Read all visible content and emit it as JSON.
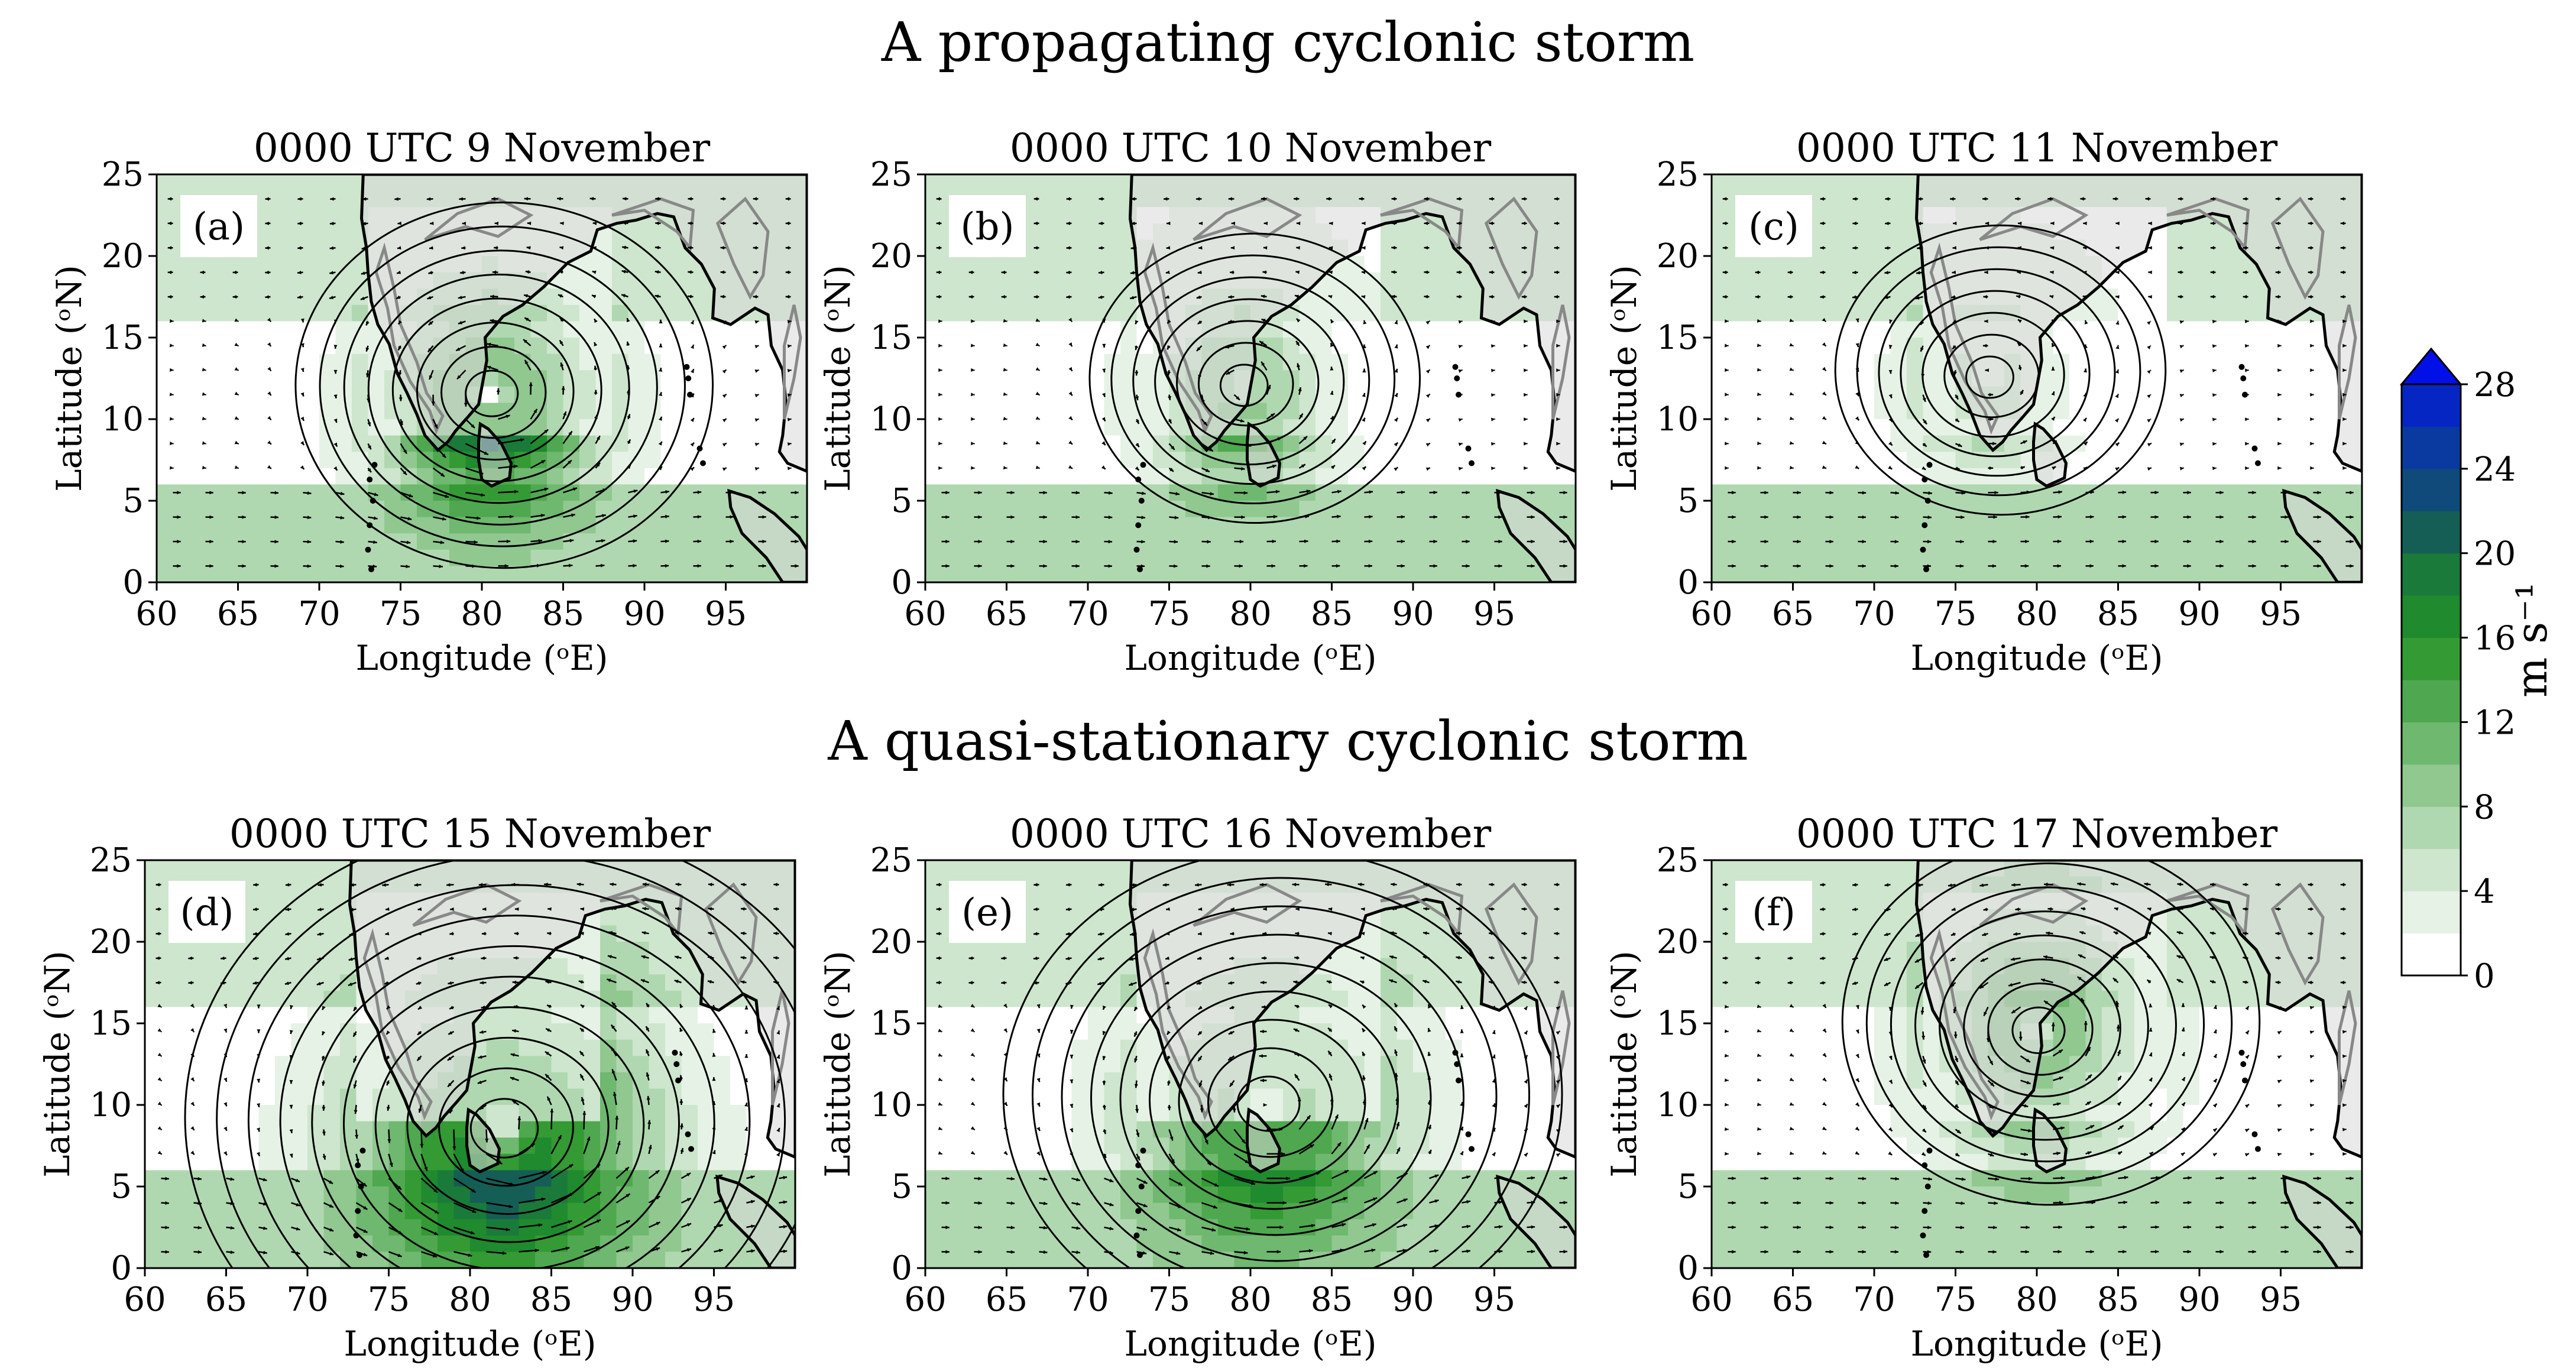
{
  "figure": {
    "row_titles": [
      "A propagating cyclonic storm",
      "A quasi-stationary cyclonic storm"
    ],
    "x_axis_label": "Longitude (ᵒE)",
    "y_axis_label": "Latitude (ᵒN)",
    "x_ticks": [
      "60",
      "65",
      "70",
      "75",
      "80",
      "85",
      "90",
      "95"
    ],
    "y_ticks": [
      "0",
      "5",
      "10",
      "15",
      "20",
      "25"
    ],
    "panels": [
      {
        "title": "0000 UTC 9  November",
        "label": "(a)",
        "center_lon": 80.5,
        "center_lat": 11.5,
        "intensity": 1.0,
        "spread": 6
      },
      {
        "title": "0000 UTC 10  November",
        "label": "(b)",
        "center_lon": 79.5,
        "center_lat": 12.0,
        "intensity": 0.85,
        "spread": 5
      },
      {
        "title": "0000 UTC 11  November",
        "label": "(c)",
        "center_lon": 77.0,
        "center_lat": 12.5,
        "intensity": 0.45,
        "spread": 5
      },
      {
        "title": "0000 UTC 15  November",
        "label": "(d)",
        "center_lon": 82.0,
        "center_lat": 8.5,
        "intensity": 0.7,
        "spread": 9
      },
      {
        "title": "0000 UTC 16  November",
        "label": "(e)",
        "center_lon": 81.0,
        "center_lat": 10.0,
        "intensity": 0.6,
        "spread": 8
      },
      {
        "title": "0000 UTC 17  November",
        "label": "(f)",
        "center_lon": 80.0,
        "center_lat": 14.5,
        "intensity": 0.9,
        "spread": 6
      }
    ]
  },
  "colorbar": {
    "unit": "m s⁻¹",
    "tick_labels": [
      "0",
      "4",
      "8",
      "12",
      "16",
      "20",
      "24",
      "28"
    ],
    "levels": [
      0,
      2,
      4,
      6,
      8,
      10,
      12,
      14,
      16,
      18,
      20,
      22,
      24,
      26,
      28
    ],
    "colors": [
      "#ffffff",
      "#e6f2e6",
      "#cde6cd",
      "#b0d8b0",
      "#90c890",
      "#6fb86f",
      "#4fa84f",
      "#349a34",
      "#1f8a2e",
      "#1a7a3a",
      "#155e55",
      "#0f4a7a",
      "#0a3aa0",
      "#0626c4",
      "#0010e6"
    ],
    "extend_color": "#0010e6"
  },
  "colors": {
    "land": "#d8d8d8",
    "coast": "#000000",
    "orography": "#888888",
    "contour": "#000000",
    "vector": "#000000"
  }
}
